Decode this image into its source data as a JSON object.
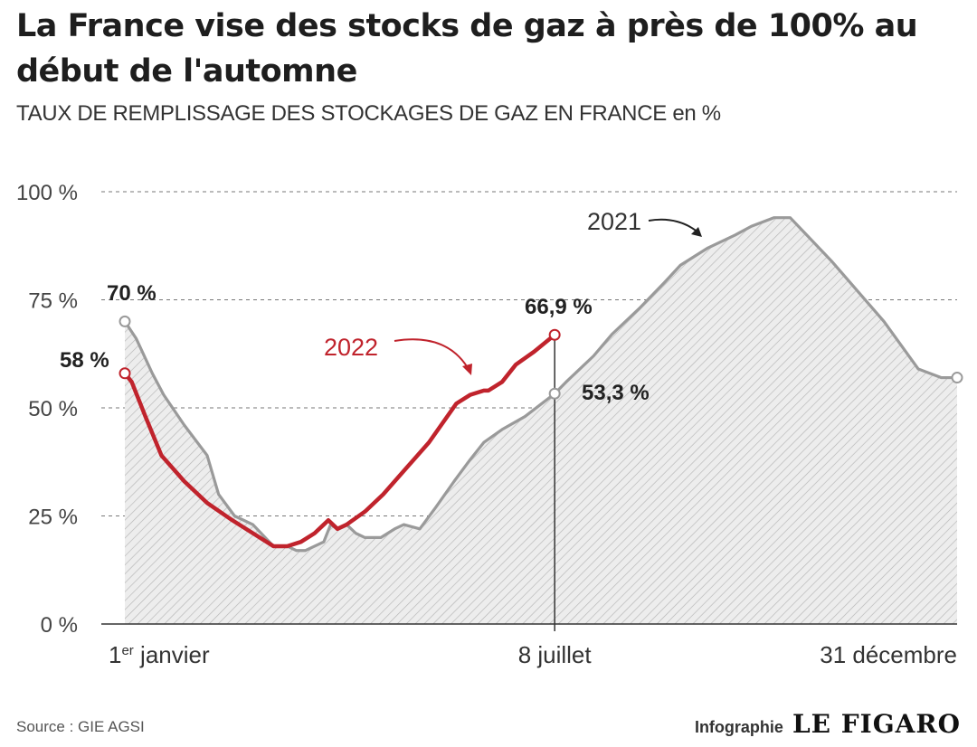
{
  "header": {
    "title": "La France vise des stocks de gaz à près de 100% au début de l'automne",
    "subtitle": "TAUX DE REMPLISSAGE DES STOCKAGES DE GAZ EN FRANCE",
    "subtitle_unit": "en %"
  },
  "chart_data": {
    "type": "line",
    "title": "La France vise des stocks de gaz à près de 100% au début de l'automne",
    "ylabel": "TAUX DE REMPLISSAGE DES STOCKAGES DE GAZ EN FRANCE en %",
    "ylim": [
      0,
      100
    ],
    "yticks": [
      {
        "value": 0,
        "label": "0 %"
      },
      {
        "value": 25,
        "label": "25 %"
      },
      {
        "value": 50,
        "label": "50 %"
      },
      {
        "value": 75,
        "label": "75 %"
      },
      {
        "value": 100,
        "label": "100 %"
      }
    ],
    "xlim": [
      1,
      365
    ],
    "xticks": [
      {
        "value": 1,
        "label_main": "1",
        "label_sup": "er",
        "label_rest": " janvier"
      },
      {
        "value": 189,
        "label_main": "8 juillet",
        "label_sup": "",
        "label_rest": ""
      },
      {
        "value": 365,
        "label_main": "31 décembre",
        "label_sup": "",
        "label_rest": ""
      }
    ],
    "grid": "horizontal dashed",
    "series": [
      {
        "name": "2021",
        "color": "#9a9a9a",
        "fill": "hatched",
        "x": [
          1,
          6,
          13,
          18,
          27,
          37,
          42,
          49,
          57,
          66,
          72,
          76,
          80,
          84,
          88,
          91,
          94,
          98,
          102,
          106,
          113,
          119,
          123,
          130,
          137,
          145,
          152,
          158,
          166,
          176,
          189,
          194,
          206,
          214,
          226,
          237,
          244,
          256,
          268,
          275,
          285,
          292,
          310,
          333,
          348,
          358,
          365
        ],
        "y": [
          70,
          66,
          58,
          53,
          46,
          39,
          30,
          25,
          23,
          18,
          18,
          17,
          17,
          18,
          19,
          23,
          22,
          23,
          21,
          20,
          20,
          22,
          23,
          22,
          27,
          33,
          38,
          42,
          45,
          48,
          53.3,
          56,
          62,
          67,
          73,
          79,
          83,
          87,
          90,
          92,
          94,
          94,
          84,
          70,
          59,
          57,
          57
        ],
        "annotations": [
          {
            "x": 1,
            "y": 70,
            "label": "70 %"
          },
          {
            "x": 189,
            "y": 53.3,
            "label": "53,3 %"
          }
        ]
      },
      {
        "name": "2022",
        "color": "#c0232c",
        "x": [
          1,
          4,
          10,
          17,
          27,
          37,
          48,
          57,
          66,
          72,
          78,
          84,
          88,
          90,
          94,
          98,
          106,
          114,
          124,
          134,
          146,
          152,
          158,
          160,
          166,
          172,
          180,
          189
        ],
        "y": [
          58,
          56,
          48,
          39,
          33,
          28,
          24,
          21,
          18,
          18,
          19,
          21,
          23,
          24,
          22,
          23,
          26,
          30,
          36,
          42,
          51,
          53,
          54,
          54,
          56,
          60,
          63,
          66.9
        ],
        "annotations": [
          {
            "x": 1,
            "y": 58,
            "label": "58 %"
          },
          {
            "x": 189,
            "y": 66.9,
            "label": "66,9 %"
          }
        ]
      }
    ]
  },
  "footer": {
    "source": "Source : GIE AGSI",
    "credit": "Infographie",
    "logo": "LE FIGARO"
  }
}
